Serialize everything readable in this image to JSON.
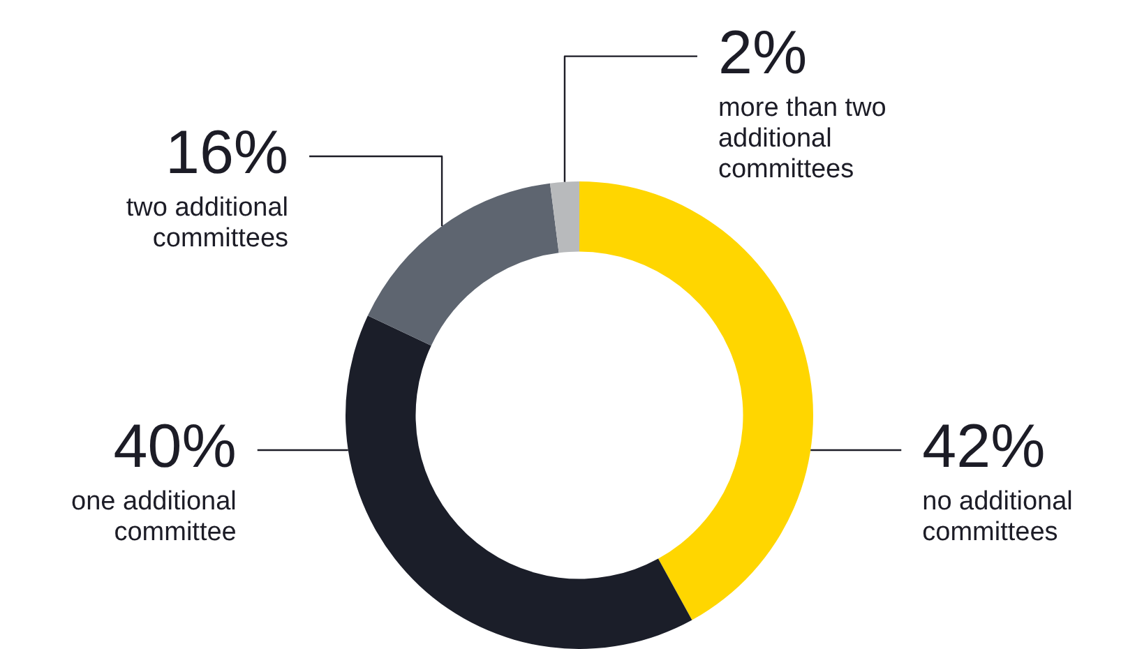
{
  "chart_data": {
    "type": "donut",
    "categories": [
      "no additional committees",
      "one additional committee",
      "two additional committees",
      "more than two additional committees"
    ],
    "values": [
      42,
      40,
      16,
      2
    ],
    "colors": [
      "#ffd600",
      "#1b1e29",
      "#5e6570",
      "#b8babc"
    ],
    "value_labels": [
      "42%",
      "40%",
      "16%",
      "2%"
    ]
  }
}
